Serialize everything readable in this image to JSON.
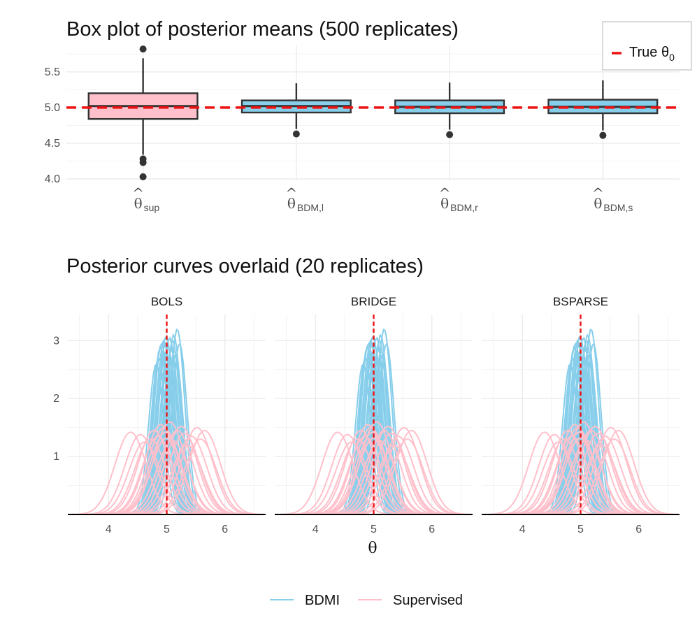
{
  "chart_data": [
    {
      "type": "box",
      "title": "Box plot of posterior means (500 replicates)",
      "categories": [
        {
          "symbol": "θ",
          "hat": "^",
          "subscript": "sup",
          "fill": "#ffc0cb"
        },
        {
          "symbol": "θ",
          "hat": "^",
          "subscript": "BDM,l",
          "fill": "#87ceeb"
        },
        {
          "symbol": "θ",
          "hat": "^",
          "subscript": "BDM,r",
          "fill": "#87ceeb"
        },
        {
          "symbol": "θ",
          "hat": "^",
          "subscript": "BDM,s",
          "fill": "#87ceeb"
        }
      ],
      "boxes": [
        {
          "q1": 4.84,
          "median": 5.02,
          "q3": 5.2,
          "whisker_low": 4.34,
          "whisker_high": 5.69,
          "outliers": [
            5.82,
            4.28,
            4.23,
            4.03
          ]
        },
        {
          "q1": 4.93,
          "median": 5.02,
          "q3": 5.1,
          "whisker_low": 4.7,
          "whisker_high": 5.34,
          "outliers": [
            4.63
          ]
        },
        {
          "q1": 4.92,
          "median": 5.01,
          "q3": 5.1,
          "whisker_low": 4.69,
          "whisker_high": 5.35,
          "outliers": [
            4.62
          ]
        },
        {
          "q1": 4.92,
          "median": 5.01,
          "q3": 5.11,
          "whisker_low": 4.68,
          "whisker_high": 5.38,
          "outliers": [
            4.61
          ]
        }
      ],
      "yticks": [
        "4.0",
        "4.5",
        "5.0",
        "5.5"
      ],
      "ylim": [
        3.98,
        5.87
      ],
      "reference_line": {
        "value": 5.0,
        "color": "#ee1111",
        "dash": "dashed"
      },
      "legend": {
        "label": "True θ",
        "subscript": "0",
        "position": "top-right"
      },
      "grid": true
    },
    {
      "type": "line",
      "title": "Posterior curves overlaid (20 replicates)",
      "panels": [
        "BOLS",
        "BRIDGE",
        "BSPARSE"
      ],
      "xlabel": "θ",
      "xticks": [
        "4",
        "5",
        "6"
      ],
      "yticks": [
        "1",
        "2",
        "3"
      ],
      "xlim": [
        3.3,
        6.7
      ],
      "ylim": [
        0,
        3.45
      ],
      "reference_line": {
        "value": 5.0,
        "color": "#ee1111",
        "dash": "dashed"
      },
      "series": [
        {
          "name": "BDMI",
          "color": "#87ceeb",
          "curve_sd": 0.13,
          "replicates": [
            {
              "center": 4.91,
              "peak": 2.95
            },
            {
              "center": 5.05,
              "peak": 3.05
            },
            {
              "center": 4.98,
              "peak": 2.8
            },
            {
              "center": 5.12,
              "peak": 3.1
            },
            {
              "center": 4.86,
              "peak": 2.7
            },
            {
              "center": 5.02,
              "peak": 2.9
            },
            {
              "center": 5.18,
              "peak": 3.2
            },
            {
              "center": 4.95,
              "peak": 3.0
            },
            {
              "center": 5.08,
              "peak": 2.85
            },
            {
              "center": 4.82,
              "peak": 2.6
            },
            {
              "center": 5.15,
              "peak": 2.75
            },
            {
              "center": 4.99,
              "peak": 3.08
            },
            {
              "center": 5.22,
              "peak": 2.95
            },
            {
              "center": 4.89,
              "peak": 2.88
            },
            {
              "center": 5.06,
              "peak": 2.65
            },
            {
              "center": 4.93,
              "peak": 2.78
            },
            {
              "center": 5.1,
              "peak": 3.0
            },
            {
              "center": 5.0,
              "peak": 2.55
            },
            {
              "center": 4.97,
              "peak": 2.92
            },
            {
              "center": 5.13,
              "peak": 2.82
            }
          ]
        },
        {
          "name": "Supervised",
          "color": "#ffc0cb",
          "curve_sd": 0.27,
          "replicates": [
            {
              "center": 4.38,
              "peak": 1.42
            },
            {
              "center": 4.72,
              "peak": 1.3
            },
            {
              "center": 4.95,
              "peak": 1.5
            },
            {
              "center": 5.18,
              "peak": 1.45
            },
            {
              "center": 5.52,
              "peak": 1.5
            },
            {
              "center": 5.65,
              "peak": 1.45
            },
            {
              "center": 4.85,
              "peak": 1.35
            },
            {
              "center": 5.05,
              "peak": 1.6
            },
            {
              "center": 5.3,
              "peak": 1.4
            },
            {
              "center": 4.62,
              "peak": 1.25
            },
            {
              "center": 5.42,
              "peak": 1.35
            },
            {
              "center": 4.9,
              "peak": 1.55
            },
            {
              "center": 5.1,
              "peak": 1.28
            },
            {
              "center": 5.25,
              "peak": 1.52
            },
            {
              "center": 4.78,
              "peak": 1.45
            },
            {
              "center": 5.0,
              "peak": 1.32
            },
            {
              "center": 5.35,
              "peak": 1.2
            },
            {
              "center": 4.55,
              "peak": 1.38
            },
            {
              "center": 5.58,
              "peak": 1.3
            },
            {
              "center": 4.98,
              "peak": 1.42
            }
          ]
        }
      ],
      "legend": {
        "position": "bottom"
      },
      "grid": true
    }
  ]
}
